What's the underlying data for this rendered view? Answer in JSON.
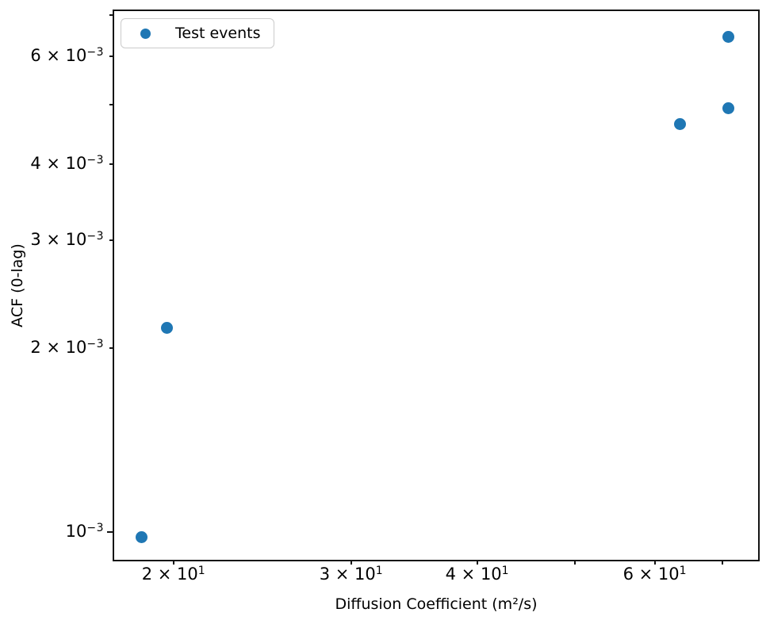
{
  "figure": {
    "background": "#ffffff",
    "spine_color": "#131313",
    "legend_border_color": "#cbcbcb"
  },
  "chart_data": {
    "type": "scatter",
    "title": "",
    "xlabel": "Diffusion Coefficient (m²/s)",
    "ylabel": "ACF (0-lag)",
    "xscale": "log",
    "yscale": "log",
    "xlim": [
      17.43,
      76.08
    ],
    "ylim": [
      0.000898,
      0.00713
    ],
    "grid": false,
    "legend": {
      "position": "upper left",
      "entries": [
        {
          "label": "Test events",
          "marker": "circle",
          "color": "#1f77b4"
        }
      ]
    },
    "series": [
      {
        "name": "Test events",
        "color": "#1f77b4",
        "marker": "circle",
        "points": [
          {
            "x": 18.6,
            "y": 0.00098
          },
          {
            "x": 19.7,
            "y": 0.00216
          },
          {
            "x": 63.5,
            "y": 0.00464
          },
          {
            "x": 71.0,
            "y": 0.00493
          },
          {
            "x": 71.0,
            "y": 0.00646
          }
        ]
      }
    ],
    "x_ticks": [
      {
        "value": 20,
        "base": "2 × 10",
        "exp": "1",
        "labeled": true,
        "major": false
      },
      {
        "value": 30,
        "base": "3 × 10",
        "exp": "1",
        "labeled": true,
        "major": false
      },
      {
        "value": 40,
        "base": "4 × 10",
        "exp": "1",
        "labeled": true,
        "major": false
      },
      {
        "value": 50,
        "base": "",
        "exp": "",
        "labeled": false,
        "major": false
      },
      {
        "value": 60,
        "base": "6 × 10",
        "exp": "1",
        "labeled": true,
        "major": false
      },
      {
        "value": 70,
        "base": "",
        "exp": "",
        "labeled": false,
        "major": false
      }
    ],
    "y_ticks": [
      {
        "value": 0.001,
        "base": "10",
        "exp": "−3",
        "labeled": true,
        "major": true
      },
      {
        "value": 0.002,
        "base": "2 × 10",
        "exp": "−3",
        "labeled": true,
        "major": false
      },
      {
        "value": 0.003,
        "base": "3 × 10",
        "exp": "−3",
        "labeled": true,
        "major": false
      },
      {
        "value": 0.004,
        "base": "4 × 10",
        "exp": "−3",
        "labeled": true,
        "major": false
      },
      {
        "value": 0.005,
        "base": "",
        "exp": "",
        "labeled": false,
        "major": false
      },
      {
        "value": 0.006,
        "base": "6 × 10",
        "exp": "−3",
        "labeled": true,
        "major": false
      },
      {
        "value": 0.007,
        "base": "",
        "exp": "",
        "labeled": false,
        "major": false
      }
    ]
  }
}
